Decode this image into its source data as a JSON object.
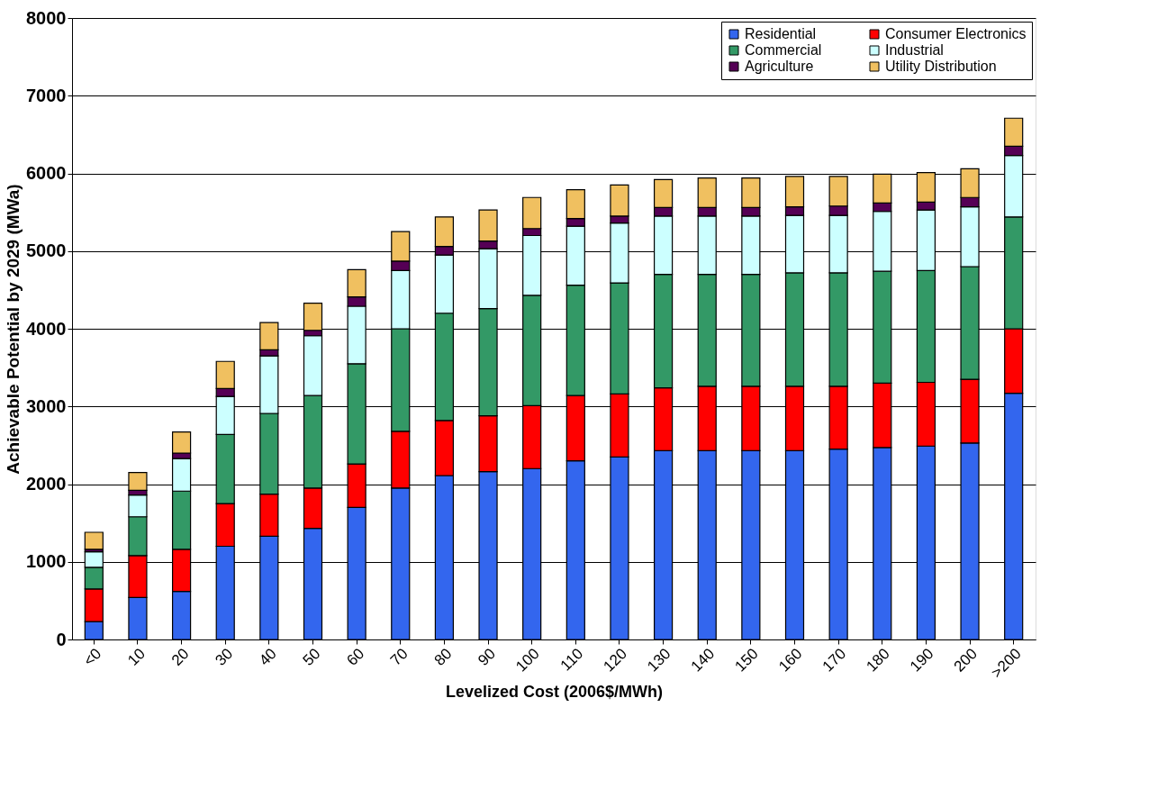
{
  "chart_data": {
    "type": "bar",
    "stacked": true,
    "xlabel": "Levelized Cost (2006$/MWh)",
    "ylabel": "Achievable Potential by 2029 (MWa)",
    "categories": [
      "<0",
      "10",
      "20",
      "30",
      "40",
      "50",
      "60",
      "70",
      "80",
      "90",
      "100",
      "110",
      "120",
      "130",
      "140",
      "150",
      "160",
      "170",
      "180",
      "190",
      "200",
      ">200"
    ],
    "ylim": [
      0,
      8000
    ],
    "yticks": [
      0,
      1000,
      2000,
      3000,
      4000,
      5000,
      6000,
      7000,
      8000
    ],
    "grid": "y",
    "legend": "top right",
    "series": [
      {
        "name": "Residential",
        "color": "#3366ee",
        "values": [
          230,
          540,
          620,
          1200,
          1330,
          1430,
          1700,
          1950,
          2110,
          2160,
          2200,
          2300,
          2350,
          2430,
          2430,
          2430,
          2430,
          2450,
          2470,
          2490,
          2530,
          3170
        ]
      },
      {
        "name": "Consumer Electronics",
        "color": "#ff0000",
        "values": [
          420,
          540,
          540,
          550,
          540,
          520,
          560,
          730,
          710,
          720,
          810,
          840,
          810,
          810,
          830,
          830,
          830,
          810,
          830,
          820,
          820,
          830
        ]
      },
      {
        "name": "Commercial",
        "color": "#339966",
        "values": [
          280,
          500,
          750,
          890,
          1040,
          1190,
          1290,
          1320,
          1380,
          1380,
          1420,
          1420,
          1430,
          1460,
          1440,
          1440,
          1460,
          1460,
          1440,
          1440,
          1450,
          1440
        ]
      },
      {
        "name": "Industrial",
        "color": "#ccffff",
        "values": [
          200,
          280,
          420,
          490,
          740,
          770,
          740,
          750,
          750,
          770,
          770,
          760,
          770,
          750,
          750,
          750,
          740,
          740,
          770,
          780,
          770,
          790
        ]
      },
      {
        "name": "Agriculture",
        "color": "#550055",
        "values": [
          30,
          60,
          70,
          100,
          80,
          70,
          120,
          120,
          110,
          100,
          90,
          100,
          90,
          110,
          110,
          110,
          110,
          120,
          110,
          100,
          120,
          120
        ]
      },
      {
        "name": "Utility Distribution",
        "color": "#f0c060",
        "values": [
          220,
          230,
          270,
          350,
          350,
          350,
          350,
          380,
          380,
          400,
          400,
          370,
          400,
          360,
          380,
          380,
          390,
          380,
          370,
          380,
          370,
          360
        ]
      }
    ]
  }
}
